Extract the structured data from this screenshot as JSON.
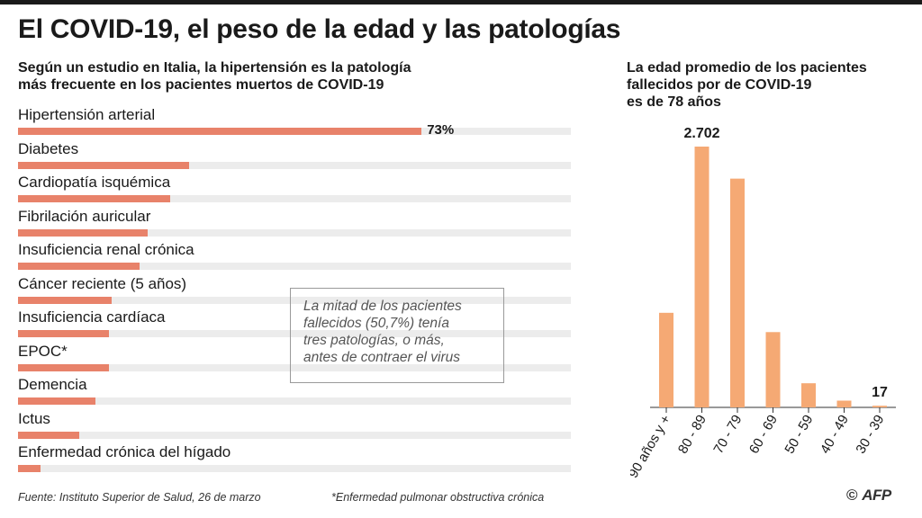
{
  "title": "El COVID-19, el peso de la edad y las patologías",
  "left": {
    "subtitle_line1": "Según un estudio en Italia, la hipertensión es la patología",
    "subtitle_line2": "más frecuente en los pacientes muertos de COVID-19"
  },
  "right": {
    "subtitle_line1": "La edad promedio de los pacientes",
    "subtitle_line2": "fallecidos por de COVID-19",
    "subtitle_line3": "es de 78 años"
  },
  "note": {
    "line1": "La mitad de los pacientes",
    "line2": "fallecidos (50,7%) tenía",
    "line3": "tres patologías, o más,",
    "line4": "antes de contraer el virus"
  },
  "footer": {
    "source": "Fuente: Instituto Superior de Salud, 26 de marzo",
    "footnote": "*Enfermedad pulmonar obstructiva crónica",
    "copyright": "©",
    "logo_text": "AFP"
  },
  "colors": {
    "pathology_bar": "#e8826a",
    "age_bar": "#f5a974",
    "track": "#ececec"
  },
  "chart_data": [
    {
      "type": "bar",
      "orientation": "horizontal",
      "title": "Según un estudio en Italia, la hipertensión es la patología más frecuente en los pacientes muertos de COVID-19",
      "categories": [
        "Hipertensión arterial",
        "Diabetes",
        "Cardiopatía isquémica",
        "Fibrilación auricular",
        "Insuficiencia renal crónica",
        "Cáncer reciente (5 años)",
        "Insuficiencia cardíaca",
        "EPOC*",
        "Demencia",
        "Ictus",
        "Enfermedad crónica del hígado"
      ],
      "values": [
        73,
        31,
        27.5,
        23.5,
        22,
        17,
        16.5,
        16.5,
        14,
        11,
        4
      ],
      "value_labels": [
        "73%",
        "",
        "",
        "",
        "",
        "",
        "",
        "",
        "",
        "",
        ""
      ],
      "unit": "%",
      "xlim": [
        0,
        100
      ],
      "grid": false
    },
    {
      "type": "bar",
      "orientation": "vertical",
      "title": "La edad promedio de los pacientes fallecidos por de COVID-19 es de 78 años",
      "categories": [
        "90 años y +",
        "80 - 89",
        "70 - 79",
        "60 - 69",
        "50 - 59",
        "40 - 49",
        "30 - 39"
      ],
      "values": [
        980,
        2702,
        2370,
        780,
        250,
        70,
        17
      ],
      "value_labels": [
        "",
        "2.702",
        "",
        "",
        "",
        "",
        "17"
      ],
      "ylim": [
        0,
        2702
      ],
      "grid": false
    }
  ]
}
